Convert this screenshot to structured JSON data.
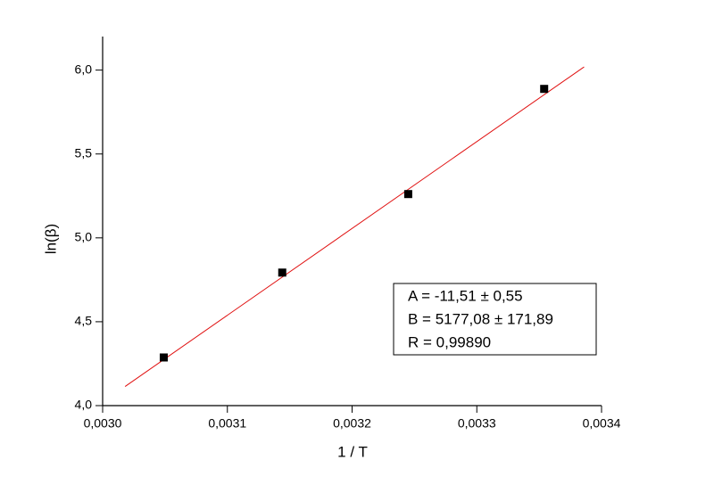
{
  "chart_data": {
    "type": "scatter",
    "x_label": "1 / T",
    "y_label": "ln(β)",
    "x": [
      0.003049,
      0.003144,
      0.003245,
      0.003354
    ],
    "values": [
      4.287,
      4.793,
      5.261,
      5.888
    ],
    "color": "#000000",
    "fit_line": {
      "x": [
        0.003018,
        0.003386
      ],
      "values": [
        4.114,
        6.019
      ],
      "color": "#e01010"
    },
    "xlim": [
      0.003,
      0.0034
    ],
    "xticks": [
      {
        "value": 0.003,
        "label": "0,0030"
      },
      {
        "value": 0.0031,
        "label": "0,0031"
      },
      {
        "value": 0.0032,
        "label": "0,0032"
      },
      {
        "value": 0.0033,
        "label": "0,0033"
      },
      {
        "value": 0.0034,
        "label": "0,0034"
      }
    ],
    "ylim": [
      4.0,
      6.2
    ],
    "yticks": [
      {
        "value": 4.0,
        "label": "4,0"
      },
      {
        "value": 4.5,
        "label": "4,5"
      },
      {
        "value": 5.0,
        "label": "5,0"
      },
      {
        "value": 5.5,
        "label": "5,5"
      },
      {
        "value": 6.0,
        "label": "6,0"
      }
    ],
    "annotations": [
      "A = -11,51 ± 0,55",
      "B = 5177,08 ± 171,89",
      "R = 0,99890"
    ]
  }
}
